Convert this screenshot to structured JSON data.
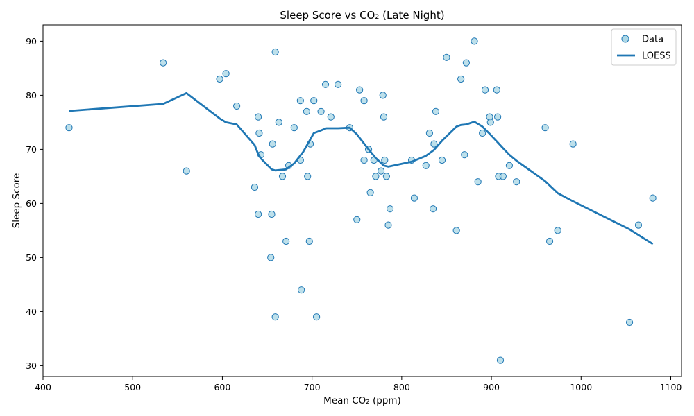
{
  "chart_data": {
    "type": "scatter",
    "title": "Sleep Score vs CO₂ (Late Night)",
    "xlabel": "Mean CO₂ (ppm)",
    "ylabel": "Sleep Score",
    "xlim": [
      400,
      1112
    ],
    "ylim": [
      28,
      93
    ],
    "xticks": [
      400,
      500,
      600,
      700,
      800,
      900,
      1000,
      1100
    ],
    "yticks": [
      30,
      40,
      50,
      60,
      70,
      80,
      90
    ],
    "grid": false,
    "legend_position": "top-right",
    "legend": [
      "Data",
      "LOESS"
    ],
    "colors": {
      "points_fill": "#add8e6",
      "points_edge": "#1f77b4",
      "line": "#1f77b4"
    },
    "series": [
      {
        "name": "Data",
        "kind": "scatter",
        "points": [
          [
            429,
            74
          ],
          [
            534,
            86
          ],
          [
            560,
            66
          ],
          [
            597,
            83
          ],
          [
            604,
            84
          ],
          [
            616,
            78
          ],
          [
            636,
            63
          ],
          [
            640,
            76
          ],
          [
            640,
            58
          ],
          [
            641,
            73
          ],
          [
            643,
            69
          ],
          [
            654,
            50
          ],
          [
            655,
            58
          ],
          [
            656,
            71
          ],
          [
            659,
            88
          ],
          [
            659,
            39
          ],
          [
            663,
            75
          ],
          [
            667,
            65
          ],
          [
            671,
            53
          ],
          [
            674,
            67
          ],
          [
            680,
            74
          ],
          [
            687,
            79
          ],
          [
            687,
            68
          ],
          [
            688,
            44
          ],
          [
            694,
            77
          ],
          [
            695,
            65
          ],
          [
            697,
            53
          ],
          [
            698,
            71
          ],
          [
            702,
            79
          ],
          [
            705,
            39
          ],
          [
            710,
            77
          ],
          [
            715,
            82
          ],
          [
            721,
            76
          ],
          [
            729,
            82
          ],
          [
            742,
            74
          ],
          [
            750,
            57
          ],
          [
            753,
            81
          ],
          [
            758,
            79
          ],
          [
            758,
            68
          ],
          [
            763,
            70
          ],
          [
            765,
            62
          ],
          [
            769,
            68
          ],
          [
            771,
            65
          ],
          [
            777,
            66
          ],
          [
            779,
            80
          ],
          [
            780,
            76
          ],
          [
            781,
            68
          ],
          [
            783,
            65
          ],
          [
            785,
            56
          ],
          [
            787,
            59
          ],
          [
            811,
            68
          ],
          [
            814,
            61
          ],
          [
            827,
            67
          ],
          [
            831,
            73
          ],
          [
            835,
            59
          ],
          [
            836,
            71
          ],
          [
            838,
            77
          ],
          [
            845,
            68
          ],
          [
            850,
            87
          ],
          [
            861,
            55
          ],
          [
            866,
            83
          ],
          [
            870,
            69
          ],
          [
            872,
            86
          ],
          [
            881,
            90
          ],
          [
            885,
            64
          ],
          [
            890,
            73
          ],
          [
            893,
            81
          ],
          [
            898,
            76
          ],
          [
            899,
            75
          ],
          [
            906,
            81
          ],
          [
            907,
            76
          ],
          [
            908,
            65
          ],
          [
            910,
            31
          ],
          [
            913,
            65
          ],
          [
            920,
            67
          ],
          [
            928,
            64
          ],
          [
            960,
            74
          ],
          [
            965,
            53
          ],
          [
            974,
            55
          ],
          [
            991,
            71
          ],
          [
            1054,
            38
          ],
          [
            1064,
            56
          ],
          [
            1080,
            61
          ]
        ]
      },
      {
        "name": "LOESS",
        "kind": "line",
        "points": [
          [
            429,
            77.1
          ],
          [
            534,
            78.4
          ],
          [
            560,
            80.4
          ],
          [
            597,
            75.7
          ],
          [
            604,
            75.0
          ],
          [
            616,
            74.6
          ],
          [
            636,
            70.8
          ],
          [
            640,
            69.1
          ],
          [
            643,
            68.3
          ],
          [
            655,
            66.3
          ],
          [
            659,
            66.1
          ],
          [
            671,
            66.3
          ],
          [
            680,
            67.4
          ],
          [
            690,
            69.5
          ],
          [
            702,
            73.0
          ],
          [
            710,
            73.5
          ],
          [
            716,
            73.9
          ],
          [
            729,
            73.9
          ],
          [
            742,
            74.0
          ],
          [
            750,
            72.8
          ],
          [
            763,
            70.0
          ],
          [
            771,
            68.4
          ],
          [
            780,
            67.0
          ],
          [
            785,
            66.8
          ],
          [
            811,
            67.7
          ],
          [
            827,
            68.8
          ],
          [
            836,
            69.9
          ],
          [
            845,
            71.6
          ],
          [
            861,
            74.2
          ],
          [
            866,
            74.5
          ],
          [
            872,
            74.6
          ],
          [
            881,
            75.1
          ],
          [
            890,
            74.2
          ],
          [
            899,
            72.7
          ],
          [
            907,
            71.3
          ],
          [
            913,
            70.2
          ],
          [
            920,
            69.0
          ],
          [
            928,
            67.9
          ],
          [
            960,
            64.1
          ],
          [
            974,
            61.9
          ],
          [
            991,
            60.4
          ],
          [
            1054,
            55.2
          ],
          [
            1080,
            52.5
          ]
        ]
      }
    ]
  }
}
